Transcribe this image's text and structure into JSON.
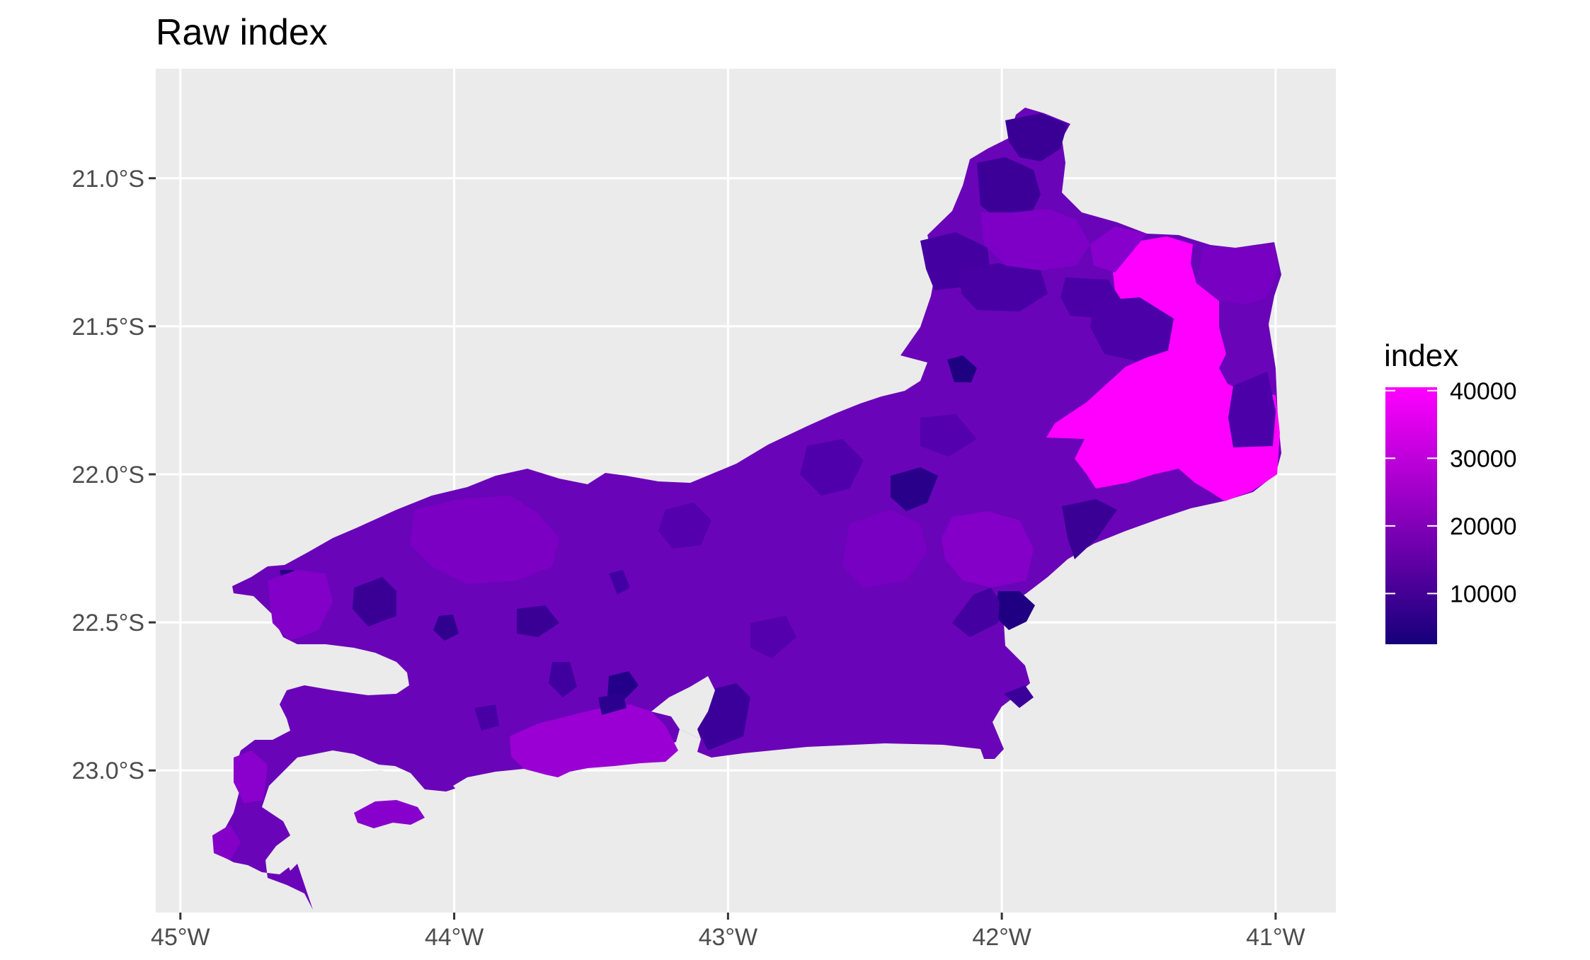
{
  "chart_data": {
    "type": "choropleth-map",
    "title": "Raw index",
    "x_ticks": [
      {
        "value": -45,
        "label": "45°W"
      },
      {
        "value": -44,
        "label": "44°W"
      },
      {
        "value": -43,
        "label": "43°W"
      },
      {
        "value": -42,
        "label": "42°W"
      },
      {
        "value": -41,
        "label": "41°W"
      }
    ],
    "y_ticks": [
      {
        "value": -21.0,
        "label": "21.0°S"
      },
      {
        "value": -21.5,
        "label": "21.5°S"
      },
      {
        "value": -22.0,
        "label": "22.0°S"
      },
      {
        "value": -22.5,
        "label": "22.5°S"
      },
      {
        "value": -23.0,
        "label": "23.0°S"
      }
    ],
    "xlim": [
      -45.09,
      -40.78
    ],
    "ylim": [
      -23.48,
      -20.63
    ],
    "grid": true,
    "legend": {
      "title": "index",
      "placement": "right",
      "breaks": [
        {
          "value": 40000,
          "label": "40000"
        },
        {
          "value": 30000,
          "label": "30000"
        },
        {
          "value": 20000,
          "label": "20000"
        },
        {
          "value": 10000,
          "label": "10000"
        }
      ],
      "range": [
        2500,
        40500
      ],
      "colors": [
        "#15007a",
        "#ff00ff"
      ]
    },
    "colors": {
      "panel": "#ebebeb",
      "grid": "#ffffff",
      "low": "#15007a",
      "high": "#ff00ff"
    }
  }
}
